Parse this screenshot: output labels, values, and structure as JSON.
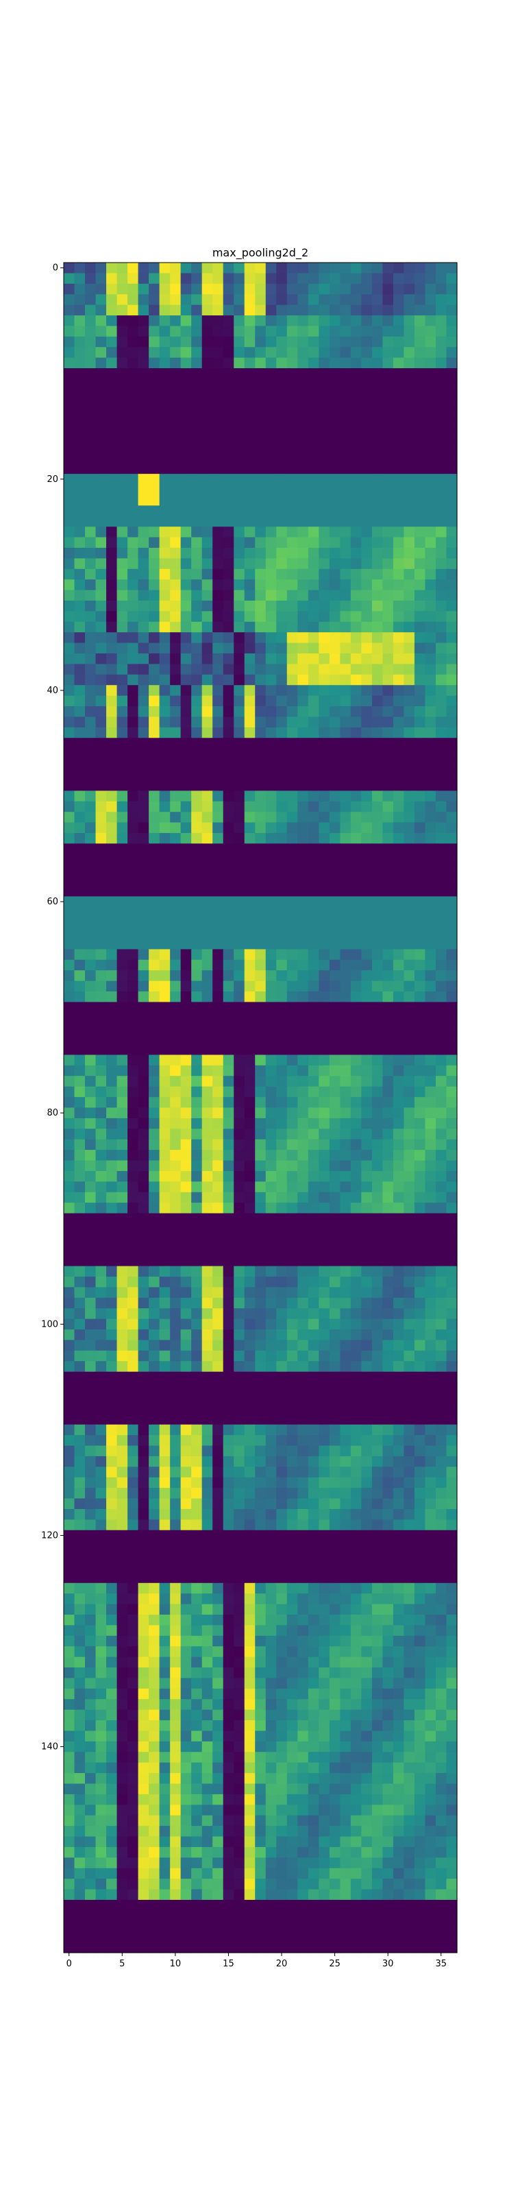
{
  "chart_data": {
    "type": "heatmap",
    "title": "max_pooling2d_2",
    "colormap": "viridis",
    "columns": 37,
    "rows": 160,
    "xlim": [
      -0.5,
      36.5
    ],
    "ylim": [
      159.5,
      -0.5
    ],
    "x_ticks": [
      0,
      5,
      10,
      15,
      20,
      25,
      30,
      35
    ],
    "y_ticks": [
      0,
      20,
      40,
      60,
      80,
      100,
      120,
      140
    ],
    "x_tick_labels": [
      "0",
      "5",
      "10",
      "15",
      "20",
      "25",
      "30",
      "35"
    ],
    "y_tick_labels": [
      "0",
      "20",
      "40",
      "60",
      "80",
      "100",
      "120",
      "140"
    ],
    "value_scale": "0 = dark purple, 1 = yellow",
    "bands": [
      {
        "rows": [
          0,
          4
        ],
        "kind": "mixed",
        "base": 0.38,
        "hot_cols": [
          4,
          5,
          6,
          9,
          10,
          13,
          14,
          17,
          18
        ],
        "dark_cols": [],
        "split_at": 19,
        "right_base": 0.32
      },
      {
        "rows": [
          5,
          9
        ],
        "kind": "mixed",
        "base": 0.55,
        "hot_cols": [],
        "dark_cols": [
          5,
          6,
          7,
          13,
          14,
          15
        ],
        "split_at": 19,
        "right_base": 0.5
      },
      {
        "rows": [
          10,
          19
        ],
        "kind": "flat",
        "base": 0.0
      },
      {
        "rows": [
          20,
          24
        ],
        "kind": "flat",
        "base": 0.45,
        "hot_cols": [
          7,
          8
        ]
      },
      {
        "rows": [
          25,
          34
        ],
        "kind": "mixed",
        "base": 0.55,
        "hot_cols": [
          9,
          10
        ],
        "dark_cols": [
          4,
          14,
          15
        ],
        "split_at": 18,
        "right_base": 0.6
      },
      {
        "rows": [
          35,
          39
        ],
        "kind": "mixed",
        "base": 0.3,
        "hot_cols": [
          21,
          22,
          23,
          24,
          25,
          26,
          27,
          28,
          29,
          30,
          31,
          32
        ],
        "dark_cols": [
          10,
          16
        ],
        "split_at": 19,
        "right_base": 0.55
      },
      {
        "rows": [
          40,
          44
        ],
        "kind": "mixed",
        "base": 0.4,
        "hot_cols": [
          4,
          8,
          13,
          17
        ],
        "dark_cols": [
          6,
          11,
          15
        ],
        "split_at": 18,
        "right_base": 0.4
      },
      {
        "rows": [
          45,
          49
        ],
        "kind": "flat",
        "base": 0.0
      },
      {
        "rows": [
          50,
          54
        ],
        "kind": "mixed",
        "base": 0.55,
        "hot_cols": [
          3,
          4,
          12,
          13
        ],
        "dark_cols": [
          6,
          7,
          15,
          16
        ],
        "split_at": 18,
        "right_base": 0.5
      },
      {
        "rows": [
          55,
          59
        ],
        "kind": "flat",
        "base": 0.0
      },
      {
        "rows": [
          60,
          64
        ],
        "kind": "flat",
        "base": 0.45
      },
      {
        "rows": [
          65,
          69
        ],
        "kind": "mixed",
        "base": 0.5,
        "hot_cols": [
          8,
          9,
          17,
          18
        ],
        "dark_cols": [
          5,
          6,
          11,
          14
        ],
        "split_at": 19,
        "right_base": 0.45
      },
      {
        "rows": [
          70,
          74
        ],
        "kind": "flat",
        "base": 0.0
      },
      {
        "rows": [
          75,
          89
        ],
        "kind": "mixed",
        "base": 0.55,
        "hot_cols": [
          9,
          10,
          11,
          13,
          14
        ],
        "dark_cols": [
          6,
          7,
          16,
          17
        ],
        "split_at": 19,
        "right_base": 0.55
      },
      {
        "rows": [
          90,
          94
        ],
        "kind": "flat",
        "base": 0.0
      },
      {
        "rows": [
          95,
          104
        ],
        "kind": "mixed",
        "base": 0.45,
        "hot_cols": [
          5,
          6,
          13,
          14
        ],
        "dark_cols": [
          5,
          6,
          15
        ],
        "split_at": 17,
        "right_base": 0.45
      },
      {
        "rows": [
          105,
          109
        ],
        "kind": "flat",
        "base": 0.0
      },
      {
        "rows": [
          110,
          119
        ],
        "kind": "mixed",
        "base": 0.45,
        "hot_cols": [
          4,
          5,
          9,
          11,
          12
        ],
        "dark_cols": [
          7,
          14
        ],
        "split_at": 16,
        "right_base": 0.45
      },
      {
        "rows": [
          120,
          124
        ],
        "kind": "flat",
        "base": 0.0
      },
      {
        "rows": [
          125,
          154
        ],
        "kind": "mixed",
        "base": 0.55,
        "hot_cols": [
          7,
          8,
          10,
          17
        ],
        "dark_cols": [
          5,
          6,
          15,
          16
        ],
        "split_at": 19,
        "right_base": 0.5
      },
      {
        "rows": [
          155,
          159
        ],
        "kind": "flat",
        "base": 0.0
      }
    ]
  }
}
